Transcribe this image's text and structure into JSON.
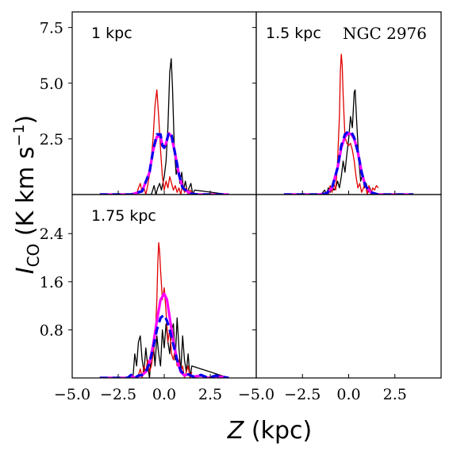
{
  "chart_data": {
    "type": "line",
    "galaxy_label": "NGC 2976",
    "xlabel_italic": "Z",
    "xlabel_unit": " (kpc)",
    "ylabel_symbol": "I",
    "ylabel_sub": "CO",
    "ylabel_unit_prefix": " (K km s",
    "ylabel_unit_exp": "−1",
    "ylabel_unit_suffix": ")",
    "xlim": [
      -5.0,
      5.0
    ],
    "x_ticks": [
      -5.0,
      -2.5,
      0.0,
      2.5
    ],
    "x_tick_labels": [
      "−5.0",
      "−2.5",
      "0.0",
      "2.5"
    ],
    "panels": [
      {
        "label": "1 kpc",
        "ylim": [
          0,
          8.2
        ],
        "y_ticks": [
          2.5,
          5.0,
          7.5
        ],
        "y_tick_labels": [
          "2.5",
          "5.0",
          "7.5"
        ],
        "series": [
          {
            "color": "#000000",
            "width": 1.3,
            "dash": "",
            "x": [
              -3.5,
              -0.7,
              -0.55,
              -0.45,
              -0.35,
              -0.25,
              -0.15,
              0.0,
              0.1,
              0.2,
              0.3,
              0.38,
              0.45,
              0.55,
              0.65,
              0.75,
              0.85,
              0.95,
              1.05,
              1.15,
              1.25,
              1.35,
              1.45,
              1.55,
              1.65,
              3.5
            ],
            "y": [
              0,
              0,
              0.4,
              0.0,
              0.3,
              0.5,
              0.2,
              0.8,
              1.5,
              3.0,
              5.5,
              6.1,
              4.8,
              2.0,
              0.9,
              1.3,
              0.5,
              1.0,
              0.2,
              0.6,
              0.1,
              0.3,
              0.5,
              0.0,
              0.2,
              0
            ]
          },
          {
            "color": "#e00000",
            "width": 1.3,
            "dash": "",
            "x": [
              -3.5,
              -1.5,
              -1.4,
              -1.3,
              -1.2,
              -1.1,
              -1.0,
              -0.9,
              -0.8,
              -0.7,
              -0.6,
              -0.5,
              -0.4,
              -0.3,
              -0.2,
              -0.1,
              0.0,
              0.1,
              0.2,
              0.3,
              0.4,
              0.5,
              0.6,
              0.7,
              0.8,
              0.9,
              1.0,
              1.1,
              1.2,
              1.3,
              1.4,
              1.5,
              1.6
            ],
            "y": [
              0,
              0,
              0.3,
              0.5,
              0.1,
              0.3,
              0.0,
              0.4,
              0.9,
              1.6,
              2.6,
              4.0,
              4.7,
              3.5,
              2.0,
              0.8,
              0.2,
              0.6,
              0.3,
              0.8,
              0.5,
              0.2,
              0.4,
              0.1,
              0.3,
              0.0,
              0.5,
              0.1,
              0.3,
              0.0,
              0.2,
              0.1,
              0.0
            ]
          },
          {
            "color": "#ff00ff",
            "width": 3.2,
            "dash": "",
            "x": [
              -3.5,
              -1.8,
              -1.2,
              -0.8,
              -0.6,
              -0.4,
              -0.2,
              -0.1,
              0.0,
              0.1,
              0.25,
              0.4,
              0.6,
              0.8,
              1.0,
              1.4,
              1.8,
              3.5
            ],
            "y": [
              0,
              0,
              0.15,
              1.0,
              2.0,
              2.6,
              2.6,
              2.2,
              2.1,
              2.3,
              2.75,
              2.6,
              1.8,
              0.9,
              0.3,
              0.05,
              0,
              0
            ]
          },
          {
            "color": "#0000ee",
            "width": 3.2,
            "dash": "10,6",
            "x": [
              -3.5,
              -1.8,
              -1.2,
              -0.8,
              -0.6,
              -0.4,
              -0.2,
              -0.1,
              0.0,
              0.1,
              0.25,
              0.4,
              0.6,
              0.8,
              1.0,
              1.4,
              1.8,
              3.5
            ],
            "y": [
              0,
              0,
              0.15,
              1.0,
              2.0,
              2.7,
              2.7,
              2.2,
              2.1,
              2.3,
              2.8,
              2.65,
              1.8,
              0.9,
              0.3,
              0.05,
              0,
              0
            ]
          }
        ]
      },
      {
        "label": "1.5 kpc",
        "show_galaxy": true,
        "ylim": [
          0,
          8.2
        ],
        "y_ticks": [
          2.5,
          5.0,
          7.5
        ],
        "y_tick_labels": [
          "2.5",
          "5.0",
          "7.5"
        ],
        "series": [
          {
            "color": "#000000",
            "width": 1.3,
            "dash": "",
            "x": [
              -3.5,
              -1.5,
              -1.3,
              -1.2,
              -1.1,
              -1.0,
              -0.9,
              -0.8,
              -0.7,
              -0.6,
              -0.5,
              -0.4,
              -0.3,
              -0.2,
              -0.1,
              0.0,
              0.1,
              0.2,
              0.3,
              0.35,
              0.45,
              0.55,
              0.65,
              0.75,
              0.85,
              0.95,
              1.05,
              1.15,
              1.25,
              3.5
            ],
            "y": [
              0,
              0,
              0.2,
              0.0,
              0.3,
              0.1,
              0.4,
              0.2,
              0.3,
              0.6,
              0.3,
              0.8,
              1.5,
              1.0,
              1.8,
              2.5,
              3.5,
              3.0,
              4.6,
              4.7,
              3.0,
              1.5,
              0.6,
              0.9,
              0.3,
              0.5,
              0.1,
              0.3,
              0.0,
              0
            ]
          },
          {
            "color": "#e00000",
            "width": 1.3,
            "dash": "",
            "x": [
              -3.5,
              -1.1,
              -1.0,
              -0.9,
              -0.8,
              -0.7,
              -0.6,
              -0.5,
              -0.45,
              -0.4,
              -0.35,
              -0.3,
              -0.25,
              -0.2,
              -0.1,
              0.0,
              0.1,
              0.2,
              0.3,
              0.4,
              0.5,
              0.6,
              0.7,
              0.8,
              0.9,
              1.0,
              1.1,
              1.2,
              1.3,
              1.4,
              1.5,
              1.6
            ],
            "y": [
              0,
              0,
              0.4,
              0.1,
              0.5,
              0.2,
              1.5,
              3.5,
              5.5,
              6.3,
              5.8,
              4.5,
              3.5,
              2.6,
              2.3,
              2.2,
              2.3,
              2.0,
              1.5,
              0.8,
              0.3,
              0.5,
              0.1,
              0.3,
              0.5,
              0.0,
              0.4,
              0.0,
              0.3,
              0.2,
              0.4,
              0.3
            ]
          },
          {
            "color": "#ff00ff",
            "width": 3.2,
            "dash": "",
            "x": [
              -3.5,
              -1.6,
              -1.2,
              -0.9,
              -0.6,
              -0.4,
              -0.2,
              0.0,
              0.15,
              0.3,
              0.5,
              0.7,
              0.9,
              1.2,
              1.6,
              3.5
            ],
            "y": [
              0,
              0,
              0.05,
              0.3,
              1.2,
              2.1,
              2.6,
              2.75,
              2.7,
              2.5,
              1.9,
              1.0,
              0.4,
              0.1,
              0,
              0
            ]
          },
          {
            "color": "#0000ee",
            "width": 3.2,
            "dash": "10,6",
            "x": [
              -3.5,
              -1.6,
              -1.2,
              -0.9,
              -0.6,
              -0.4,
              -0.2,
              0.0,
              0.15,
              0.3,
              0.5,
              0.7,
              0.9,
              1.2,
              1.6,
              3.5
            ],
            "y": [
              0,
              0,
              0.05,
              0.3,
              1.2,
              2.2,
              2.7,
              2.85,
              2.8,
              2.55,
              1.9,
              1.0,
              0.4,
              0.1,
              0,
              0
            ]
          }
        ]
      },
      {
        "label": "1.75 kpc",
        "ylim": [
          0,
          3.05
        ],
        "y_ticks": [
          0.8,
          1.6,
          2.4
        ],
        "y_tick_labels": [
          "0.8",
          "1.6",
          "2.4"
        ],
        "series": [
          {
            "color": "#000000",
            "width": 1.3,
            "dash": "",
            "x": [
              -3.5,
              -1.7,
              -1.6,
              -1.5,
              -1.4,
              -1.3,
              -1.2,
              -1.1,
              -1.0,
              -0.9,
              -0.8,
              -0.7,
              -0.6,
              -0.5,
              -0.4,
              -0.3,
              -0.2,
              -0.1,
              0.0,
              0.1,
              0.2,
              0.3,
              0.4,
              0.5,
              0.6,
              0.7,
              0.8,
              0.9,
              1.0,
              1.1,
              1.2,
              1.3,
              1.4,
              1.5,
              3.5
            ],
            "y": [
              0,
              0,
              0.4,
              0.2,
              0.6,
              0.7,
              0.3,
              0.1,
              0.5,
              0.2,
              0.0,
              0.4,
              0.6,
              0.2,
              0.7,
              0.4,
              0.2,
              0.8,
              0.5,
              0.9,
              0.6,
              0.4,
              0.8,
              0.9,
              0.3,
              1.0,
              0.5,
              0.1,
              0.7,
              0.3,
              0.1,
              0.4,
              0.0,
              0.2,
              0
            ]
          },
          {
            "color": "#e00000",
            "width": 1.3,
            "dash": "",
            "x": [
              -3.5,
              -1.5,
              -1.4,
              -1.3,
              -1.2,
              -1.1,
              -1.0,
              -0.9,
              -0.8,
              -0.7,
              -0.6,
              -0.5,
              -0.4,
              -0.35,
              -0.3,
              -0.25,
              -0.2,
              -0.1,
              0.0,
              0.1,
              0.2,
              0.3,
              0.4,
              0.5,
              0.6,
              0.7,
              0.8,
              0.9,
              1.0,
              1.1,
              1.2,
              1.3,
              1.4,
              1.5
            ],
            "y": [
              0,
              0,
              0.05,
              0.15,
              0.0,
              0.2,
              0.1,
              0.3,
              0.1,
              0.2,
              0.4,
              0.6,
              1.3,
              1.9,
              2.25,
              2.1,
              1.8,
              1.3,
              1.5,
              1.1,
              0.6,
              0.8,
              0.4,
              0.3,
              0.5,
              0.2,
              0.3,
              0.1,
              0.2,
              0.0,
              0.1,
              0.2,
              0.0,
              0.1
            ]
          },
          {
            "color": "#ff00ff",
            "width": 3.2,
            "dash": "",
            "x": [
              -3.5,
              -2.0,
              -1.8,
              -1.6,
              -1.4,
              -1.2,
              -1.0,
              -0.8,
              -0.6,
              -0.4,
              -0.2,
              0.0,
              0.15,
              0.3,
              0.5,
              0.7,
              0.9,
              1.1,
              1.3,
              1.6,
              2.0,
              2.4,
              2.8,
              3.5
            ],
            "y": [
              0,
              0,
              0.04,
              0,
              0.03,
              0.05,
              0.1,
              0.25,
              0.55,
              0.95,
              1.3,
              1.4,
              1.3,
              1.0,
              0.6,
              0.3,
              0.1,
              0.04,
              0.06,
              0.02,
              0.04,
              0,
              0.03,
              0
            ]
          },
          {
            "color": "#0000ee",
            "width": 3.2,
            "dash": "10,6",
            "x": [
              -3.5,
              -2.0,
              -1.8,
              -1.6,
              -1.4,
              -1.2,
              -1.0,
              -0.8,
              -0.6,
              -0.4,
              -0.2,
              0.0,
              0.15,
              0.3,
              0.5,
              0.7,
              0.9,
              1.1,
              1.3,
              1.6,
              2.0,
              2.4,
              2.8,
              3.5
            ],
            "y": [
              0,
              0,
              0.05,
              0,
              0.04,
              0.05,
              0.1,
              0.25,
              0.5,
              0.8,
              1.0,
              1.05,
              0.95,
              0.8,
              0.55,
              0.3,
              0.12,
              0.05,
              0.06,
              0.02,
              0.05,
              0,
              0.04,
              0
            ]
          }
        ]
      },
      {
        "label": "",
        "ylim": [
          0,
          3.05
        ],
        "y_ticks": [
          0.8,
          1.6,
          2.4
        ],
        "y_tick_labels": [
          "",
          "",
          ""
        ],
        "series": []
      }
    ]
  }
}
